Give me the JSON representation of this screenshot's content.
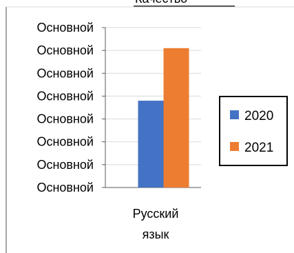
{
  "top_cropped_text": "Качество",
  "chart_data": {
    "type": "bar",
    "categories": [
      "Русский язык"
    ],
    "category_lines": [
      "Русский",
      "язык"
    ],
    "series": [
      {
        "name": "2020",
        "values": [
          3.8
        ],
        "color": "#4472C4"
      },
      {
        "name": "2021",
        "values": [
          6.1
        ],
        "color": "#ED7D31"
      }
    ],
    "ylim": [
      0,
      7
    ],
    "ytick_labels": [
      "Основной",
      "Основной",
      "Основной",
      "Основной",
      "Основной",
      "Основной",
      "Основной",
      "Основной"
    ],
    "grid": true,
    "legend_position": "right"
  }
}
